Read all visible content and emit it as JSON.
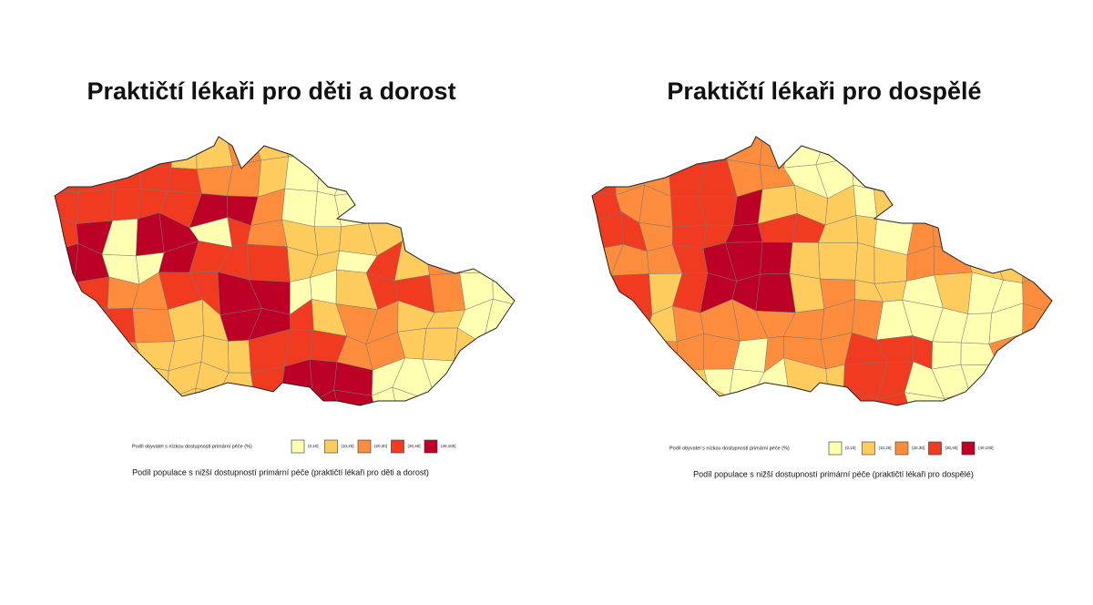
{
  "maps": [
    {
      "title": "Praktičtí lékaři pro děti a dorost",
      "legend": {
        "title": "Podíl obyvatel s nízkou dostupností primární péče (%)",
        "items": [
          {
            "label": "(0,10]",
            "color": "#ffffb2"
          },
          {
            "label": "(10,20]",
            "color": "#fecc5c"
          },
          {
            "label": "(20,30]",
            "color": "#fd8d3c"
          },
          {
            "label": "(30,40]",
            "color": "#f03b20"
          },
          {
            "label": "(40,100]",
            "color": "#bd0026"
          }
        ]
      },
      "caption": "Podíl populace s nižší dostupností primární péče (praktičtí lékaři pro děti a dorost)"
    },
    {
      "title": "Praktičtí lékaři pro dospělé",
      "legend": {
        "title": "Podíl obyvatel s nízkou dostupností primární péče (%)",
        "items": [
          {
            "label": "(0,10]",
            "color": "#ffffb2"
          },
          {
            "label": "(10,20]",
            "color": "#fecc5c"
          },
          {
            "label": "(20,30]",
            "color": "#fd8d3c"
          },
          {
            "label": "(30,40]",
            "color": "#f03b20"
          },
          {
            "label": "(40,100]",
            "color": "#bd0026"
          }
        ]
      },
      "caption": "Podíl populace s nižší dostupností primární péče (praktičtí lékaři pro dospělé)"
    }
  ]
}
